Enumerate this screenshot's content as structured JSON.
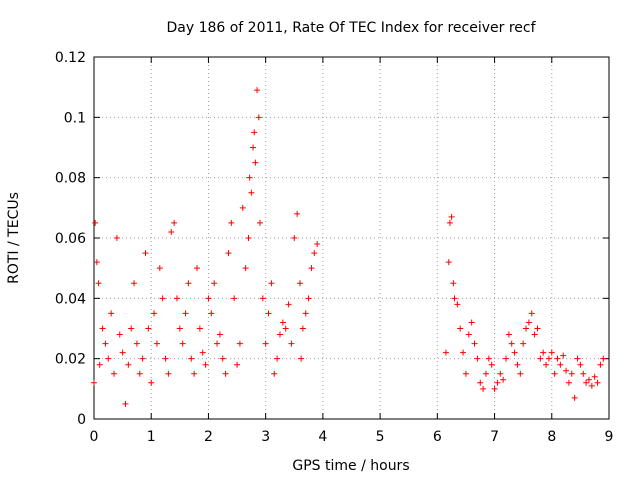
{
  "chart_data": {
    "type": "scatter",
    "title": "Day 186 of 2011, Rate Of TEC Index for receiver recf",
    "xlabel": "GPS time / hours",
    "ylabel": "ROTI / TECUs",
    "xlim": [
      0,
      9
    ],
    "ylim": [
      0,
      0.12
    ],
    "x_ticks": [
      "0",
      "1",
      "2",
      "3",
      "4",
      "5",
      "6",
      "7",
      "8",
      "9"
    ],
    "y_ticks": [
      "0",
      "0.02",
      "0.04",
      "0.06",
      "0.08",
      "0.1",
      "0.12"
    ],
    "grid": true,
    "marker": "+",
    "color": "#ff0000",
    "series": [
      {
        "name": "ROTI",
        "x": [
          0.0,
          0.02,
          0.05,
          0.08,
          0.1,
          0.15,
          0.2,
          0.25,
          0.3,
          0.35,
          0.4,
          0.45,
          0.5,
          0.55,
          0.6,
          0.65,
          0.7,
          0.75,
          0.8,
          0.85,
          0.9,
          0.95,
          1.0,
          1.05,
          1.1,
          1.15,
          1.2,
          1.25,
          1.3,
          1.35,
          1.4,
          1.45,
          1.5,
          1.55,
          1.6,
          1.65,
          1.7,
          1.75,
          1.8,
          1.85,
          1.9,
          1.95,
          2.0,
          2.05,
          2.1,
          2.15,
          2.2,
          2.25,
          2.3,
          2.35,
          2.4,
          2.45,
          2.5,
          2.55,
          2.6,
          2.65,
          2.7,
          2.72,
          2.75,
          2.78,
          2.8,
          2.82,
          2.85,
          2.88,
          2.9,
          2.95,
          3.0,
          3.05,
          3.1,
          3.15,
          3.2,
          3.25,
          3.3,
          3.35,
          3.4,
          3.45,
          3.5,
          3.55,
          3.6,
          3.62,
          3.65,
          3.7,
          3.75,
          3.8,
          3.85,
          3.9,
          6.15,
          6.2,
          6.22,
          6.25,
          6.28,
          6.3,
          6.35,
          6.4,
          6.45,
          6.5,
          6.55,
          6.6,
          6.65,
          6.7,
          6.75,
          6.8,
          6.85,
          6.9,
          6.95,
          7.0,
          7.05,
          7.1,
          7.15,
          7.2,
          7.25,
          7.3,
          7.35,
          7.4,
          7.45,
          7.5,
          7.55,
          7.6,
          7.65,
          7.7,
          7.75,
          7.8,
          7.85,
          7.9,
          7.95,
          8.0,
          8.05,
          8.1,
          8.15,
          8.2,
          8.25,
          8.3,
          8.35,
          8.4,
          8.45,
          8.5,
          8.55,
          8.6,
          8.65,
          8.7,
          8.75,
          8.8,
          8.85,
          8.9
        ],
        "y": [
          0.012,
          0.065,
          0.052,
          0.045,
          0.018,
          0.03,
          0.025,
          0.02,
          0.035,
          0.015,
          0.06,
          0.028,
          0.022,
          0.005,
          0.018,
          0.03,
          0.045,
          0.025,
          0.015,
          0.02,
          0.055,
          0.03,
          0.012,
          0.035,
          0.025,
          0.05,
          0.04,
          0.02,
          0.015,
          0.062,
          0.065,
          0.04,
          0.03,
          0.025,
          0.035,
          0.045,
          0.02,
          0.015,
          0.05,
          0.03,
          0.022,
          0.018,
          0.04,
          0.035,
          0.045,
          0.025,
          0.028,
          0.02,
          0.015,
          0.055,
          0.065,
          0.04,
          0.018,
          0.025,
          0.07,
          0.05,
          0.06,
          0.08,
          0.075,
          0.09,
          0.095,
          0.085,
          0.109,
          0.1,
          0.065,
          0.04,
          0.025,
          0.035,
          0.045,
          0.015,
          0.02,
          0.028,
          0.032,
          0.03,
          0.038,
          0.025,
          0.06,
          0.068,
          0.045,
          0.02,
          0.03,
          0.035,
          0.04,
          0.05,
          0.055,
          0.058,
          0.022,
          0.052,
          0.065,
          0.067,
          0.045,
          0.04,
          0.038,
          0.03,
          0.022,
          0.015,
          0.028,
          0.032,
          0.025,
          0.02,
          0.012,
          0.01,
          0.015,
          0.02,
          0.018,
          0.01,
          0.012,
          0.015,
          0.013,
          0.02,
          0.028,
          0.025,
          0.022,
          0.018,
          0.015,
          0.025,
          0.03,
          0.032,
          0.035,
          0.028,
          0.03,
          0.02,
          0.022,
          0.018,
          0.02,
          0.022,
          0.015,
          0.02,
          0.018,
          0.021,
          0.016,
          0.012,
          0.015,
          0.007,
          0.02,
          0.018,
          0.015,
          0.012,
          0.013,
          0.011,
          0.014,
          0.012,
          0.018,
          0.02
        ]
      }
    ]
  }
}
